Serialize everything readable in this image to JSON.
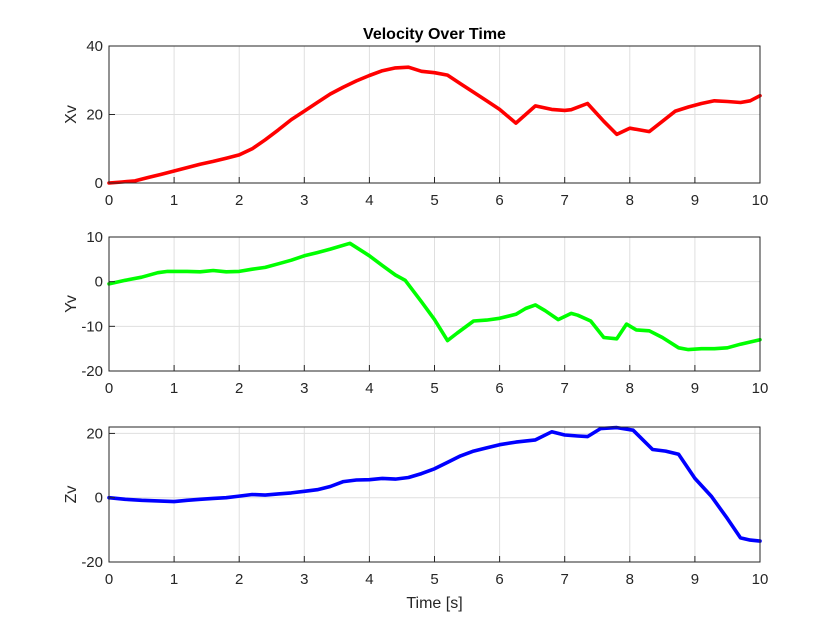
{
  "chart_data": [
    {
      "type": "line",
      "title": "Velocity Over Time",
      "xlabel": "",
      "ylabel": "Xv",
      "xlim": [
        0,
        10
      ],
      "ylim": [
        0,
        40
      ],
      "xticks": [
        "0",
        "1",
        "2",
        "3",
        "4",
        "5",
        "6",
        "7",
        "8",
        "9",
        "10"
      ],
      "yticks": [
        "0",
        "20",
        "40"
      ],
      "grid": true,
      "series": [
        {
          "color": "#ff0000",
          "x": [
            0,
            0.2,
            0.4,
            0.6,
            0.8,
            1.0,
            1.2,
            1.4,
            1.6,
            1.8,
            2.0,
            2.2,
            2.4,
            2.6,
            2.8,
            3.0,
            3.2,
            3.4,
            3.6,
            3.8,
            4.0,
            4.2,
            4.4,
            4.6,
            4.8,
            5.0,
            5.2,
            5.4,
            5.6,
            5.8,
            6.0,
            6.25,
            6.55,
            6.8,
            7.0,
            7.1,
            7.35,
            7.6,
            7.8,
            8.0,
            8.3,
            8.5,
            8.7,
            8.9,
            9.1,
            9.3,
            9.5,
            9.7,
            9.85,
            10.0
          ],
          "y": [
            0,
            0.3,
            0.6,
            1.6,
            2.5,
            3.5,
            4.5,
            5.5,
            6.3,
            7.2,
            8.2,
            10,
            12.6,
            15.5,
            18.5,
            21,
            23.5,
            26,
            28,
            29.8,
            31.4,
            32.8,
            33.6,
            33.8,
            32.6,
            32.2,
            31.5,
            29,
            26.5,
            24,
            21.5,
            17.5,
            22.5,
            21.5,
            21.2,
            21.4,
            23.2,
            18,
            14.2,
            16,
            15,
            18,
            21,
            22.2,
            23.2,
            24,
            23.8,
            23.5,
            24,
            25.5
          ]
        }
      ]
    },
    {
      "type": "line",
      "title": "",
      "xlabel": "",
      "ylabel": "Yv",
      "xlim": [
        0,
        10
      ],
      "ylim": [
        -20,
        10
      ],
      "xticks": [
        "0",
        "1",
        "2",
        "3",
        "4",
        "5",
        "6",
        "7",
        "8",
        "9",
        "10"
      ],
      "yticks": [
        "-20",
        "-10",
        "0",
        "10"
      ],
      "grid": true,
      "series": [
        {
          "color": "#00ff00",
          "x": [
            0,
            0.25,
            0.5,
            0.75,
            0.9,
            1.2,
            1.4,
            1.6,
            1.8,
            2.0,
            2.2,
            2.4,
            2.6,
            2.8,
            3.0,
            3.2,
            3.4,
            3.7,
            4.0,
            4.2,
            4.4,
            4.55,
            4.8,
            5.0,
            5.2,
            5.35,
            5.6,
            5.8,
            6.0,
            6.25,
            6.4,
            6.55,
            6.7,
            6.9,
            7.1,
            7.2,
            7.4,
            7.6,
            7.8,
            7.95,
            8.1,
            8.3,
            8.5,
            8.75,
            8.9,
            9.1,
            9.3,
            9.5,
            9.7,
            10.0
          ],
          "y": [
            -0.5,
            0.3,
            1,
            2,
            2.3,
            2.3,
            2.2,
            2.5,
            2.2,
            2.3,
            2.8,
            3.2,
            4,
            4.8,
            5.8,
            6.5,
            7.3,
            8.6,
            5.8,
            3.6,
            1.5,
            0.3,
            -4.5,
            -8.5,
            -13.2,
            -11.5,
            -8.8,
            -8.6,
            -8.2,
            -7.3,
            -6,
            -5.2,
            -6.5,
            -8.5,
            -7.1,
            -7.5,
            -8.8,
            -12.5,
            -12.8,
            -9.5,
            -10.8,
            -11,
            -12.5,
            -14.8,
            -15.2,
            -15,
            -15,
            -14.8,
            -14,
            -13
          ]
        }
      ]
    },
    {
      "type": "line",
      "title": "",
      "xlabel": "Time [s]",
      "ylabel": "Zv",
      "xlim": [
        0,
        10
      ],
      "ylim": [
        -20,
        22
      ],
      "xticks": [
        "0",
        "1",
        "2",
        "3",
        "4",
        "5",
        "6",
        "7",
        "8",
        "9",
        "10"
      ],
      "yticks": [
        "-20",
        "0",
        "20"
      ],
      "grid": true,
      "series": [
        {
          "color": "#0000ff",
          "x": [
            0,
            0.25,
            0.5,
            0.75,
            1.0,
            1.2,
            1.4,
            1.6,
            1.8,
            2.0,
            2.2,
            2.4,
            2.6,
            2.8,
            3.0,
            3.2,
            3.4,
            3.6,
            3.8,
            4.0,
            4.2,
            4.4,
            4.6,
            4.8,
            5.0,
            5.2,
            5.4,
            5.6,
            5.8,
            6.0,
            6.25,
            6.55,
            6.8,
            7.0,
            7.2,
            7.35,
            7.55,
            7.8,
            8.05,
            8.35,
            8.55,
            8.75,
            9.0,
            9.25,
            9.5,
            9.7,
            9.85,
            10.0
          ],
          "y": [
            0,
            -0.5,
            -0.8,
            -1,
            -1.2,
            -0.8,
            -0.5,
            -0.2,
            0,
            0.5,
            1,
            0.8,
            1.2,
            1.5,
            2,
            2.5,
            3.5,
            5,
            5.5,
            5.6,
            6,
            5.8,
            6.3,
            7.5,
            9,
            11,
            13,
            14.5,
            15.5,
            16.5,
            17.3,
            18,
            20.5,
            19.5,
            19.2,
            19,
            21.5,
            21.8,
            21,
            15,
            14.5,
            13.5,
            6,
            0.5,
            -6.5,
            -12.5,
            -13.2,
            -13.5
          ]
        }
      ]
    }
  ]
}
